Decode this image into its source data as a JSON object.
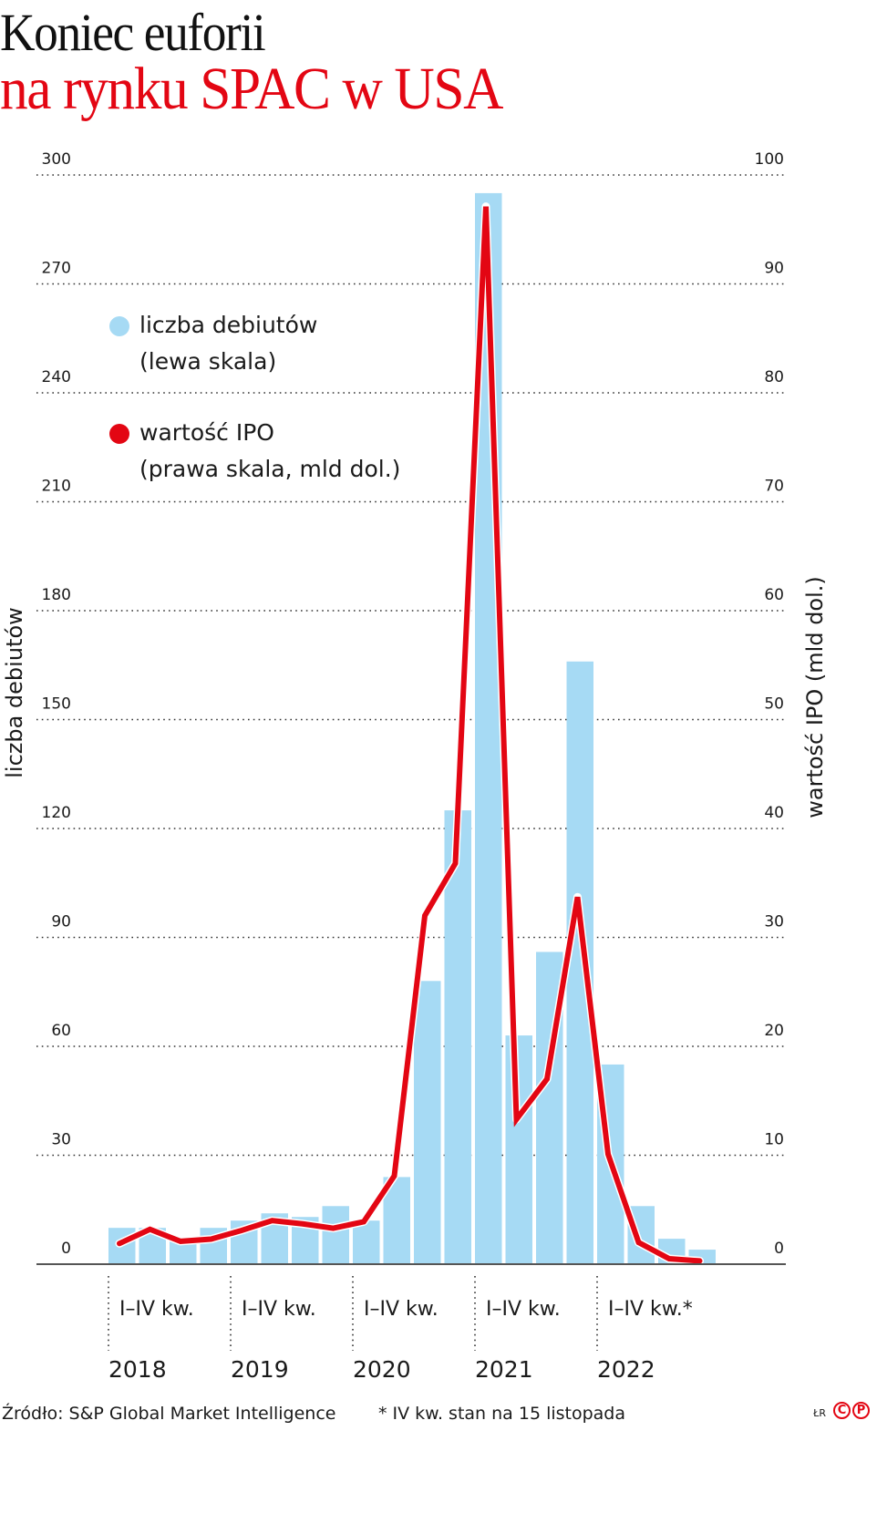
{
  "header": {
    "title_line1": "Koniec euforii",
    "title_line2": "na rynku SPAC w USA"
  },
  "legend": [
    {
      "label_line1": "liczba debiutów",
      "label_line2": "(lewa skala)",
      "color": "#a6daf4",
      "icon": "circle-dot-icon"
    },
    {
      "label_line1": "wartość IPO",
      "label_line2": "(prawa skala, mld dol.)",
      "color": "#e30613",
      "icon": "circle-dot-icon"
    }
  ],
  "axes": {
    "left_title": "liczba debiutów",
    "right_title": "wartość IPO (mld dol.)",
    "left_ticks": [
      "0",
      "30",
      "60",
      "90",
      "120",
      "150",
      "180",
      "210",
      "240",
      "270",
      "300"
    ],
    "right_ticks": [
      "0",
      "10",
      "20",
      "30",
      "40",
      "50",
      "60",
      "70",
      "80",
      "90",
      "100"
    ]
  },
  "x_groups": [
    {
      "quarters": "I–IV kw.",
      "year": "2018"
    },
    {
      "quarters": "I–IV kw.",
      "year": "2019"
    },
    {
      "quarters": "I–IV kw.",
      "year": "2020"
    },
    {
      "quarters": "I–IV kw.",
      "year": "2021"
    },
    {
      "quarters": "I–IV kw.*",
      "year": "2022"
    }
  ],
  "footer": {
    "source": "Źródło: S&P Global Market Intelligence",
    "note": "* IV kw. stan na 15 listopada",
    "initials": "ŁR",
    "logo_c": "C",
    "logo_p": "P"
  },
  "colors": {
    "bar": "#a6daf4",
    "line": "#e30613",
    "title_red": "#e30613",
    "grid": "#333333"
  },
  "chart_data": {
    "type": "bar+line",
    "title": "Koniec euforii na rynku SPAC w USA",
    "categories": [
      "I kw. 2018",
      "II kw. 2018",
      "III kw. 2018",
      "IV kw. 2018",
      "I kw. 2019",
      "II kw. 2019",
      "III kw. 2019",
      "IV kw. 2019",
      "I kw. 2020",
      "II kw. 2020",
      "III kw. 2020",
      "IV kw. 2020",
      "I kw. 2021",
      "II kw. 2021",
      "III kw. 2021",
      "IV kw. 2021",
      "I kw. 2022",
      "II kw. 2022",
      "III kw. 2022",
      "IV kw. 2022*"
    ],
    "series": [
      {
        "name": "liczba debiutów (lewa skala)",
        "type": "bar",
        "axis": "left",
        "values": [
          10,
          10,
          7,
          10,
          12,
          14,
          13,
          16,
          12,
          24,
          78,
          125,
          295,
          63,
          86,
          166,
          55,
          16,
          7,
          4
        ]
      },
      {
        "name": "wartość IPO (prawa skala, mld dol.)",
        "type": "line",
        "axis": "right",
        "values": [
          1.9,
          3.2,
          2.1,
          2.3,
          3.1,
          4.0,
          3.7,
          3.3,
          3.9,
          8.1,
          32.0,
          36.8,
          97.1,
          13.3,
          17.0,
          33.7,
          10.1,
          2.0,
          0.5,
          0.3
        ]
      }
    ],
    "xlabel": "",
    "ylabel_left": "liczba debiutów",
    "ylabel_right": "wartość IPO (mld dol.)",
    "ylim_left": [
      0,
      300
    ],
    "ylim_right": [
      0,
      100
    ],
    "grid": true,
    "legend_position": "upper-left",
    "notes": [
      "* IV kw. stan na 15 listopada"
    ],
    "source": "Źródło: S&P Global Market Intelligence"
  }
}
